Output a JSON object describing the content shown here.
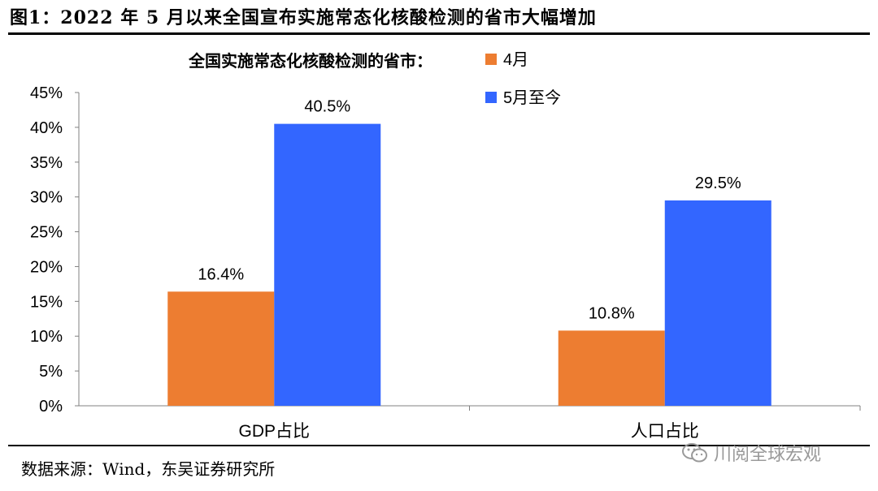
{
  "header": {
    "title": "图1：2022 年 5 月以来全国宣布实施常态化核酸检测的省市大幅增加"
  },
  "footer": {
    "source": "数据来源：Wind，东吴证券研究所"
  },
  "watermark": {
    "text": "川阅全球宏观",
    "icon": "wechat-icon"
  },
  "chart_data": {
    "type": "bar",
    "legend_title": "全国实施常态化核酸检测的省市：",
    "legend_position": "top-right",
    "categories": [
      "GDP占比",
      "人口占比"
    ],
    "series": [
      {
        "name": "4月",
        "values": [
          16.4,
          10.8
        ],
        "labels": [
          "16.4%",
          "10.8%"
        ],
        "color": "#ed7d31"
      },
      {
        "name": "5月至今",
        "values": [
          40.5,
          29.5
        ],
        "labels": [
          "40.5%",
          "29.5%"
        ],
        "color": "#3366ff"
      }
    ],
    "ylim": [
      0,
      45
    ],
    "yticks": [
      "0%",
      "5%",
      "10%",
      "15%",
      "20%",
      "25%",
      "30%",
      "35%",
      "40%",
      "45%"
    ],
    "grid": false
  }
}
